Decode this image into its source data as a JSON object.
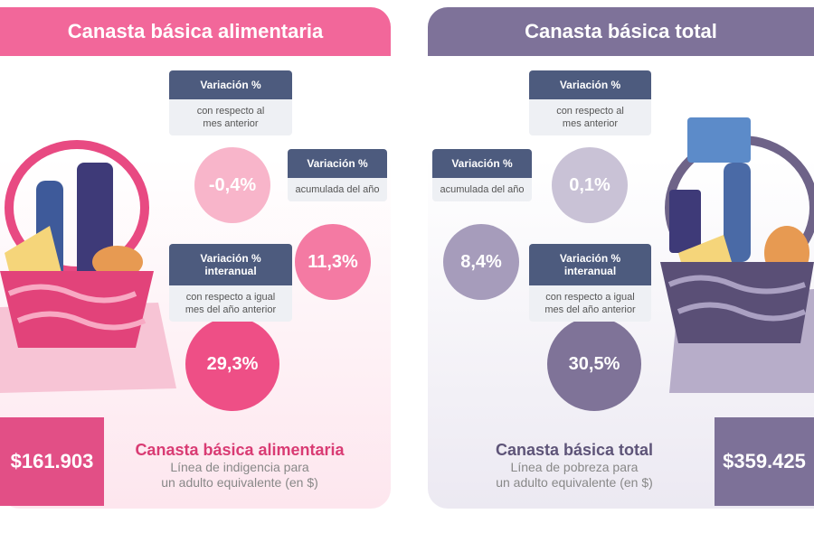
{
  "panels": [
    {
      "title": "Canasta básica alimentaria",
      "items": [
        {
          "label": "Variación %",
          "sublabel": [
            "con respecto al",
            "mes anterior"
          ],
          "value": "-0,4%"
        },
        {
          "label": "Variación %",
          "sublabel": [
            "acumulada del año"
          ],
          "value": "11,3%"
        },
        {
          "label": "Variación % interanual",
          "sublabel": [
            "con respecto a igual",
            "mes del año anterior"
          ],
          "value": "29,3%"
        }
      ],
      "summary": {
        "amount": "$161.903",
        "title": "Canasta básica alimentaria",
        "lines": [
          "Línea de indigencia para",
          "un adulto equivalente (en $)"
        ]
      }
    },
    {
      "title": "Canasta básica total",
      "items": [
        {
          "label": "Variación %",
          "sublabel": [
            "con respecto al",
            "mes anterior"
          ],
          "value": "0,1%"
        },
        {
          "label": "Variación %",
          "sublabel": [
            "acumulada del año"
          ],
          "value": "8,4%"
        },
        {
          "label": "Variación % interanual",
          "sublabel": [
            "con respecto a igual",
            "mes del año anterior"
          ],
          "value": "30,5%"
        }
      ],
      "summary": {
        "amount": "$359.425",
        "title": "Canasta básica total",
        "lines": [
          "Línea de pobreza para",
          "un adulto equivalente (en $)"
        ]
      }
    }
  ]
}
